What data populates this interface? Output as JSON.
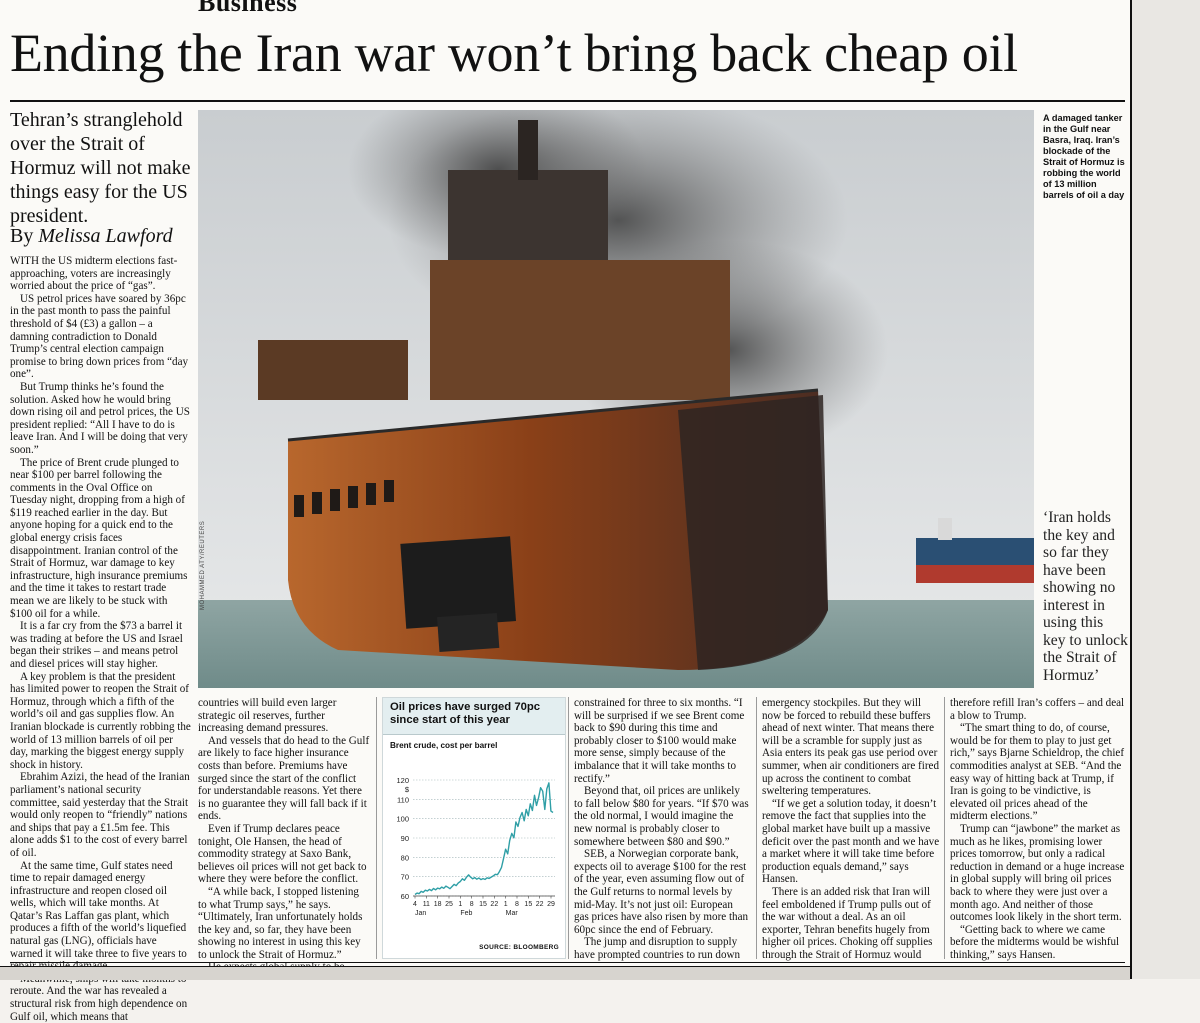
{
  "section": "Business",
  "headline": "Ending the Iran war won’t bring back cheap oil",
  "standfirst": "Tehran’s stranglehold over the Strait of Hormuz will not make things easy for the US president.",
  "byline_prefix": "By",
  "byline_name": "Melissa Lawford",
  "photo_credit": "MOHAMMED ATY/REUTERS",
  "caption": "A damaged tanker in the Gulf near Basra, Iraq. Iran’s blockade of the Strait of Hormuz is robbing the world of 13 million barrels of oil a day",
  "pull_quote": "‘Iran holds the key and so far they have been showing no interest in using this key to unlock the Strait of Hormuz’",
  "columns": {
    "c1": [
      "WITH the US midterm elections fast-approaching, voters are increasingly worried about the price of “gas”.",
      "US petrol prices have soared by 36pc in the past month to pass the painful threshold of $4 (£3) a gallon – a damning contradiction to Donald Trump’s central election campaign promise to bring down prices from “day one”.",
      "But Trump thinks he’s found the solution. Asked how he would bring down rising oil and petrol prices, the US president replied: “All I have to do is leave Iran. And I will be doing that very soon.”",
      "The price of Brent crude plunged to near $100 per barrel following the comments in the Oval Office on Tuesday night, dropping from a high of $119 reached earlier in the day. But anyone hoping for a quick end to the global energy crisis faces disappointment. Iranian control of the Strait of Hormuz, war damage to key infrastructure, high insurance premiums and the time it takes to restart trade mean we are likely to be stuck with $100 oil for a while.",
      "It is a far cry from the $73 a barrel it was trading at before the US and Israel began their strikes – and means petrol and diesel prices will stay higher.",
      "A key problem is that the president has limited power to reopen the Strait of Hormuz, through which a fifth of the world’s oil and gas supplies flow. An Iranian blockade is currently robbing the world of 13 million barrels of oil per day, marking the biggest energy supply shock in history.",
      "Ebrahim Azizi, the head of the Iranian parliament’s national security committee, said yesterday that the Strait would only reopen to “friendly” nations and ships that pay a £1.5m fee. This alone adds $1 to the cost of every barrel of oil.",
      "At the same time, Gulf states need time to repair damaged energy infrastructure and reopen closed oil wells, which will take months. At Qatar’s Ras Laffan gas plant, which produces a fifth of the world’s liquefied natural gas (LNG), officials have warned it will take three to five years to repair missile damage.",
      "Meanwhile, ships will take months to reroute. And the war has revealed a structural risk from high dependence on Gulf oil, which means that"
    ],
    "c2": [
      "countries will build even larger strategic oil reserves, further increasing demand pressures.",
      "And vessels that do head to the Gulf are likely to face higher insurance costs than before. Premiums have surged since the start of the conflict for understandable reasons. Yet there is no guarantee they will fall back if it ends.",
      "Even if Trump declares peace tonight, Ole Hansen, the head of commodity strategy at Saxo Bank, believes oil prices will not get back to where they were before the conflict.",
      "“A while back, I stopped listening to what Trump says,” he says. “Ultimately, Iran unfortunately holds the key and, so far, they have been showing no interest in using this key to unlock the Strait of Hormuz.”",
      "He expects global supply to be"
    ],
    "c4": [
      "constrained for three to six months. “I will be surprised if we see Brent come back to $90 during this time and probably closer to $100 would make more sense, simply because of the imbalance that it will take months to rectify.”",
      "Beyond that, oil prices are unlikely to fall below $80 for years. “If $70 was the old normal, I would imagine the new normal is probably closer to somewhere between $80 and $90.”",
      "SEB, a Norwegian corporate bank, expects oil to average $100 for the rest of the year, even assuming flow out of the Gulf returns to normal levels by mid-May. It’s not just oil: European gas prices have also risen by more than 60pc since the end of February.",
      "The jump and disruption to supply have prompted countries to run down"
    ],
    "c5": [
      "emergency stockpiles. But they will now be forced to rebuild these buffers ahead of next winter. That means there will be a scramble for supply just as Asia enters its peak gas use period over summer, when air conditioners are fired up across the continent to combat sweltering temperatures.",
      "“If we get a solution today, it doesn’t remove the fact that supplies into the global market have built up a massive deficit over the past month and we have a market where it will take time before production equals demand,” says Hansen.",
      "There is an added risk that Iran will feel emboldened if Trump pulls out of the war without a deal. As an oil exporter, Tehran benefits hugely from higher oil prices. Choking off supplies through the Strait of Hormuz would"
    ],
    "c6": [
      "therefore refill Iran’s coffers – and deal a blow to Trump.",
      "“The smart thing to do, of course, would be for them to play to just get rich,” says Bjarne Schieldrop, the chief commodities analyst at SEB. “And the easy way of hitting back at Trump, if Iran is going to be vindictive, is elevated oil prices ahead of the midterm elections.”",
      "Trump can “jawbone” the market as much as he likes, promising lower prices tomorrow, but only a radical reduction in demand or a huge increase in global supply will bring oil prices back to where they were just over a month ago. And neither of those outcomes look likely in the short term.",
      "“Getting back to where we came before the midterms would be wishful thinking,” says Hansen."
    ]
  },
  "chart_data": {
    "type": "line",
    "title": "Oil prices have surged 70pc since start of this year",
    "subtitle": "Brent crude, cost per barrel",
    "y_unit": "$",
    "ylim": [
      60,
      120
    ],
    "y_ticks": [
      60,
      70,
      80,
      90,
      100,
      110,
      120
    ],
    "x_ticks": [
      "4",
      "11",
      "18",
      "25",
      "1",
      "8",
      "15",
      "22",
      "1",
      "8",
      "15",
      "22",
      "29"
    ],
    "x_month_labels": [
      "Jan",
      "Feb",
      "Mar"
    ],
    "source": "SOURCE: BLOOMBERG",
    "series": [
      {
        "color": "#2f9fa6",
        "values": [
          60.8,
          61.5,
          61.2,
          62.4,
          61.9,
          63.0,
          62.6,
          63.4,
          62.8,
          63.9,
          63.2,
          64.1,
          63.7,
          64.6,
          64.0,
          65.1,
          64.5,
          63.8,
          64.9,
          66.0,
          65.4,
          66.8,
          67.5,
          68.9,
          68.1,
          69.7,
          70.9,
          69.8,
          68.9,
          69.5,
          68.7,
          69.3,
          68.5,
          69.0,
          68.6,
          69.4,
          69.1,
          69.8,
          70.4,
          71.2,
          71.0,
          72.6,
          74.8,
          79.5,
          84.2,
          81.8,
          88.7,
          92.4,
          90.1,
          98.3,
          96.0,
          100.6,
          103.2,
          98.9,
          104.8,
          101.5,
          107.7,
          104.2,
          112.1,
          106.8,
          110.9,
          116.0,
          114.2,
          104.8,
          115.4,
          118.5,
          103.9,
          103.2
        ]
      }
    ]
  }
}
